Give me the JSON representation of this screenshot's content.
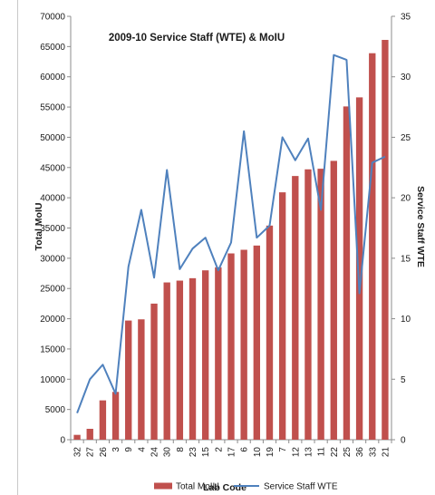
{
  "chart_data": {
    "type": "bar",
    "title": "2009-10 Service Staff (WTE) & MoIU",
    "xlabel": "Lab Code",
    "ylabel": "Total MoIU",
    "y2label": "Service Staff WTE",
    "ylim": [
      0,
      70000
    ],
    "y2lim": [
      0,
      35
    ],
    "yticks": [
      0,
      5000,
      10000,
      15000,
      20000,
      25000,
      30000,
      35000,
      40000,
      45000,
      50000,
      55000,
      60000,
      65000,
      70000
    ],
    "y2ticks": [
      0,
      5,
      10,
      15,
      20,
      25,
      30,
      35
    ],
    "categories": [
      "32",
      "27",
      "26",
      "3",
      "9",
      "4",
      "24",
      "30",
      "8",
      "23",
      "15",
      "2",
      "17",
      "6",
      "10",
      "19",
      "7",
      "12",
      "13",
      "11",
      "22",
      "25",
      "36",
      "33",
      "21"
    ],
    "series": [
      {
        "name": "Total MoIU",
        "type": "bar",
        "axis": "left",
        "color": "#c0504d",
        "values": [
          800,
          1800,
          6500,
          7900,
          19700,
          19900,
          22500,
          26000,
          26300,
          26700,
          28000,
          28500,
          30800,
          31400,
          32100,
          35400,
          40900,
          43600,
          44700,
          44800,
          46100,
          55100,
          56600,
          63900,
          66100
        ]
      },
      {
        "name": "Service Staff WTE",
        "type": "line",
        "axis": "right",
        "color": "#4f81bd",
        "values": [
          2.2,
          5.0,
          6.2,
          3.8,
          14.3,
          19.0,
          13.4,
          22.3,
          14.1,
          15.8,
          16.7,
          14.0,
          16.3,
          25.5,
          16.7,
          17.7,
          25.0,
          23.1,
          24.9,
          19.0,
          31.8,
          31.4,
          12.1,
          22.9,
          23.4
        ]
      }
    ],
    "legend_position": "bottom",
    "grid": false
  }
}
